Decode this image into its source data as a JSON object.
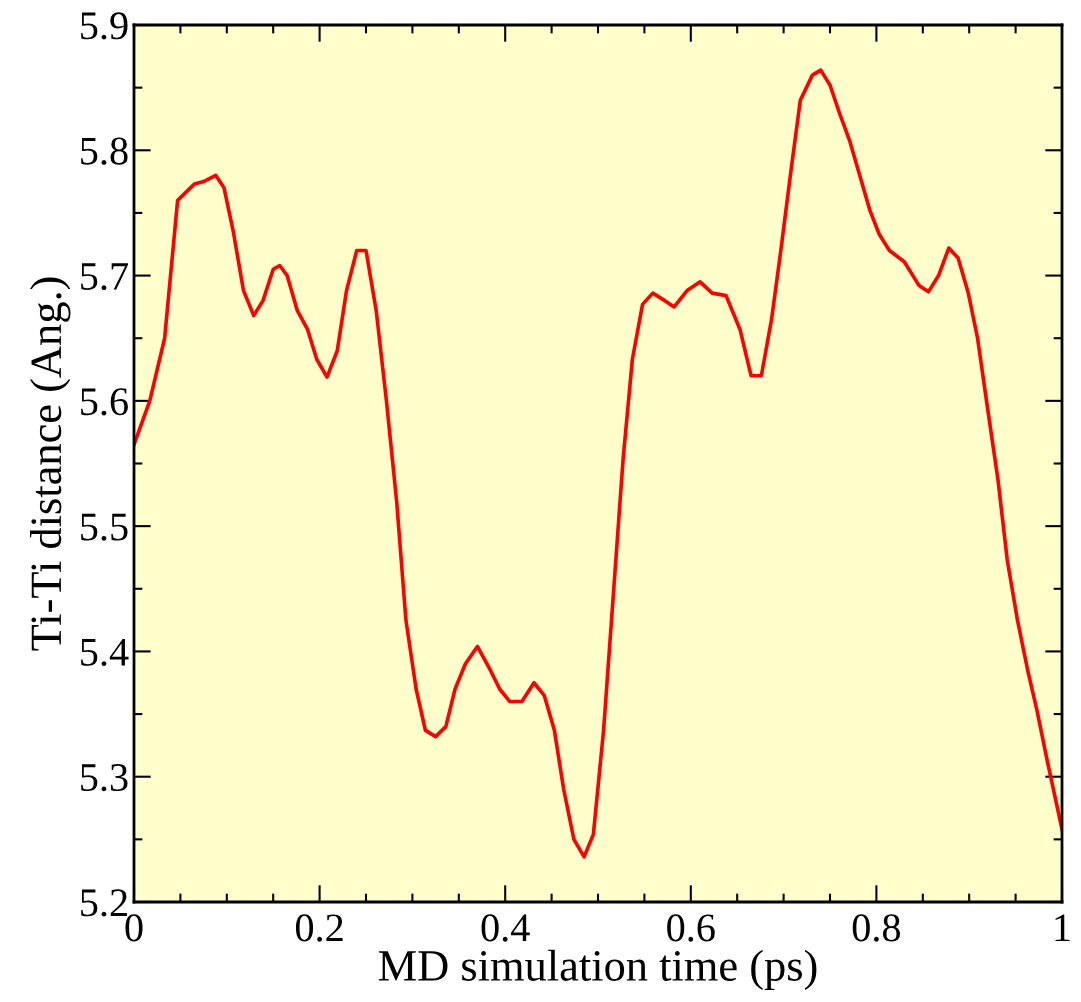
{
  "chart_data": {
    "type": "line",
    "xlabel": "MD simulation time (ps)",
    "ylabel": "Ti-Ti distance (Ang.)",
    "xlim": [
      0,
      1
    ],
    "ylim": [
      5.2,
      5.9
    ],
    "xticks": [
      0,
      0.2,
      0.4,
      0.6,
      0.8,
      1
    ],
    "yticks": [
      5.2,
      5.3,
      5.4,
      5.5,
      5.6,
      5.7,
      5.8,
      5.9
    ],
    "grid": false,
    "legend": false,
    "marker": "none",
    "line_style": "solid",
    "series": [
      {
        "color": "#ff0000",
        "x": [
          0,
          0.017,
          0.033,
          0.047,
          0.065,
          0.075,
          0.088,
          0.097,
          0.107,
          0.118,
          0.129,
          0.139,
          0.15,
          0.157,
          0.165,
          0.176,
          0.187,
          0.197,
          0.208,
          0.219,
          0.229,
          0.24,
          0.25,
          0.261,
          0.272,
          0.283,
          0.293,
          0.304,
          0.314,
          0.325,
          0.336,
          0.346,
          0.357,
          0.37,
          0.384,
          0.394,
          0.405,
          0.418,
          0.431,
          0.442,
          0.453,
          0.463,
          0.474,
          0.485,
          0.495,
          0.506,
          0.516,
          0.527,
          0.537,
          0.548,
          0.559,
          0.572,
          0.582,
          0.596,
          0.61,
          0.623,
          0.638,
          0.653,
          0.665,
          0.676,
          0.687,
          0.697,
          0.708,
          0.718,
          0.731,
          0.74,
          0.75,
          0.761,
          0.771,
          0.782,
          0.793,
          0.803,
          0.814,
          0.83,
          0.846,
          0.856,
          0.867,
          0.878,
          0.888,
          0.899,
          0.909,
          0.92,
          0.931,
          0.941,
          0.952,
          0.963,
          0.973,
          0.984,
          1
        ],
        "values": [
          5.565,
          5.6,
          5.65,
          5.76,
          5.773,
          5.775,
          5.78,
          5.77,
          5.735,
          5.688,
          5.668,
          5.68,
          5.705,
          5.708,
          5.7,
          5.672,
          5.657,
          5.633,
          5.619,
          5.64,
          5.688,
          5.72,
          5.72,
          5.672,
          5.6,
          5.52,
          5.425,
          5.37,
          5.337,
          5.332,
          5.34,
          5.37,
          5.39,
          5.404,
          5.385,
          5.37,
          5.36,
          5.36,
          5.375,
          5.365,
          5.337,
          5.29,
          5.25,
          5.236,
          5.254,
          5.337,
          5.44,
          5.553,
          5.633,
          5.677,
          5.686,
          5.68,
          5.675,
          5.688,
          5.695,
          5.686,
          5.684,
          5.657,
          5.62,
          5.62,
          5.665,
          5.72,
          5.784,
          5.84,
          5.86,
          5.864,
          5.852,
          5.828,
          5.808,
          5.78,
          5.752,
          5.733,
          5.72,
          5.711,
          5.692,
          5.687,
          5.7,
          5.722,
          5.714,
          5.686,
          5.65,
          5.593,
          5.537,
          5.473,
          5.425,
          5.385,
          5.353,
          5.313,
          5.258
        ]
      }
    ]
  }
}
